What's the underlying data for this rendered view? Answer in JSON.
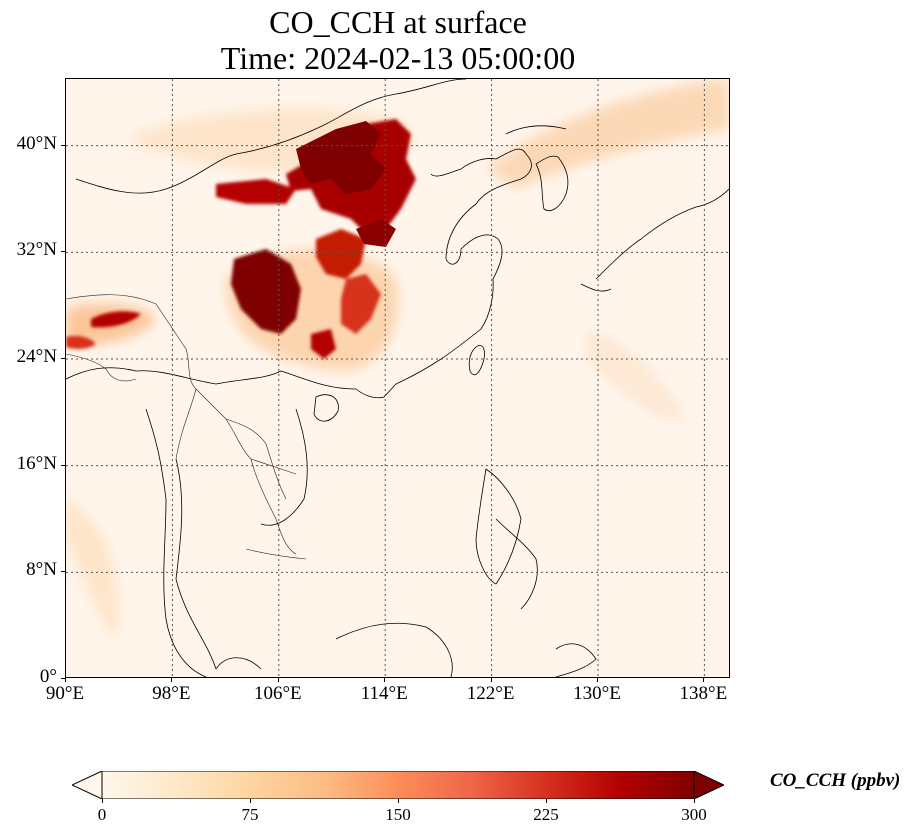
{
  "title": {
    "line1": "CO_CCH at surface",
    "line2": "Time: 2024-02-13 05:00:00"
  },
  "map": {
    "region": "East and Southeast Asia",
    "projection": "PlateCarree",
    "lon_range": [
      90,
      140
    ],
    "lat_range": [
      0,
      45
    ],
    "gridlines": "dotted",
    "x_ticks": [
      {
        "value": 90,
        "label": "90°E"
      },
      {
        "value": 98,
        "label": "98°E"
      },
      {
        "value": 106,
        "label": "106°E"
      },
      {
        "value": 114,
        "label": "114°E"
      },
      {
        "value": 122,
        "label": "122°E"
      },
      {
        "value": 130,
        "label": "130°E"
      },
      {
        "value": 138,
        "label": "138°E"
      }
    ],
    "y_ticks": [
      {
        "value": 0,
        "label": "0°"
      },
      {
        "value": 8,
        "label": "8°N"
      },
      {
        "value": 16,
        "label": "16°N"
      },
      {
        "value": 24,
        "label": "24°N"
      },
      {
        "value": 32,
        "label": "32°N"
      },
      {
        "value": 40,
        "label": "40°N"
      }
    ],
    "field_colors": {
      "background": "#fff5eb",
      "low": "#fee6ce",
      "mid": "#fdae6b",
      "high": "#e6550d",
      "peak": "#7f0000"
    }
  },
  "colorbar": {
    "label": "CO_CCH (ppbv)",
    "min": 0,
    "max": 300,
    "extend": "both",
    "colormap": "OrRd",
    "tick_labels": [
      "0",
      "75",
      "150",
      "225",
      "300"
    ],
    "stops": [
      "#fff7ec",
      "#fee8c8",
      "#fdd49e",
      "#fdbb84",
      "#fc8d59",
      "#ef6548",
      "#d7301f",
      "#b30000",
      "#7f0000"
    ]
  }
}
